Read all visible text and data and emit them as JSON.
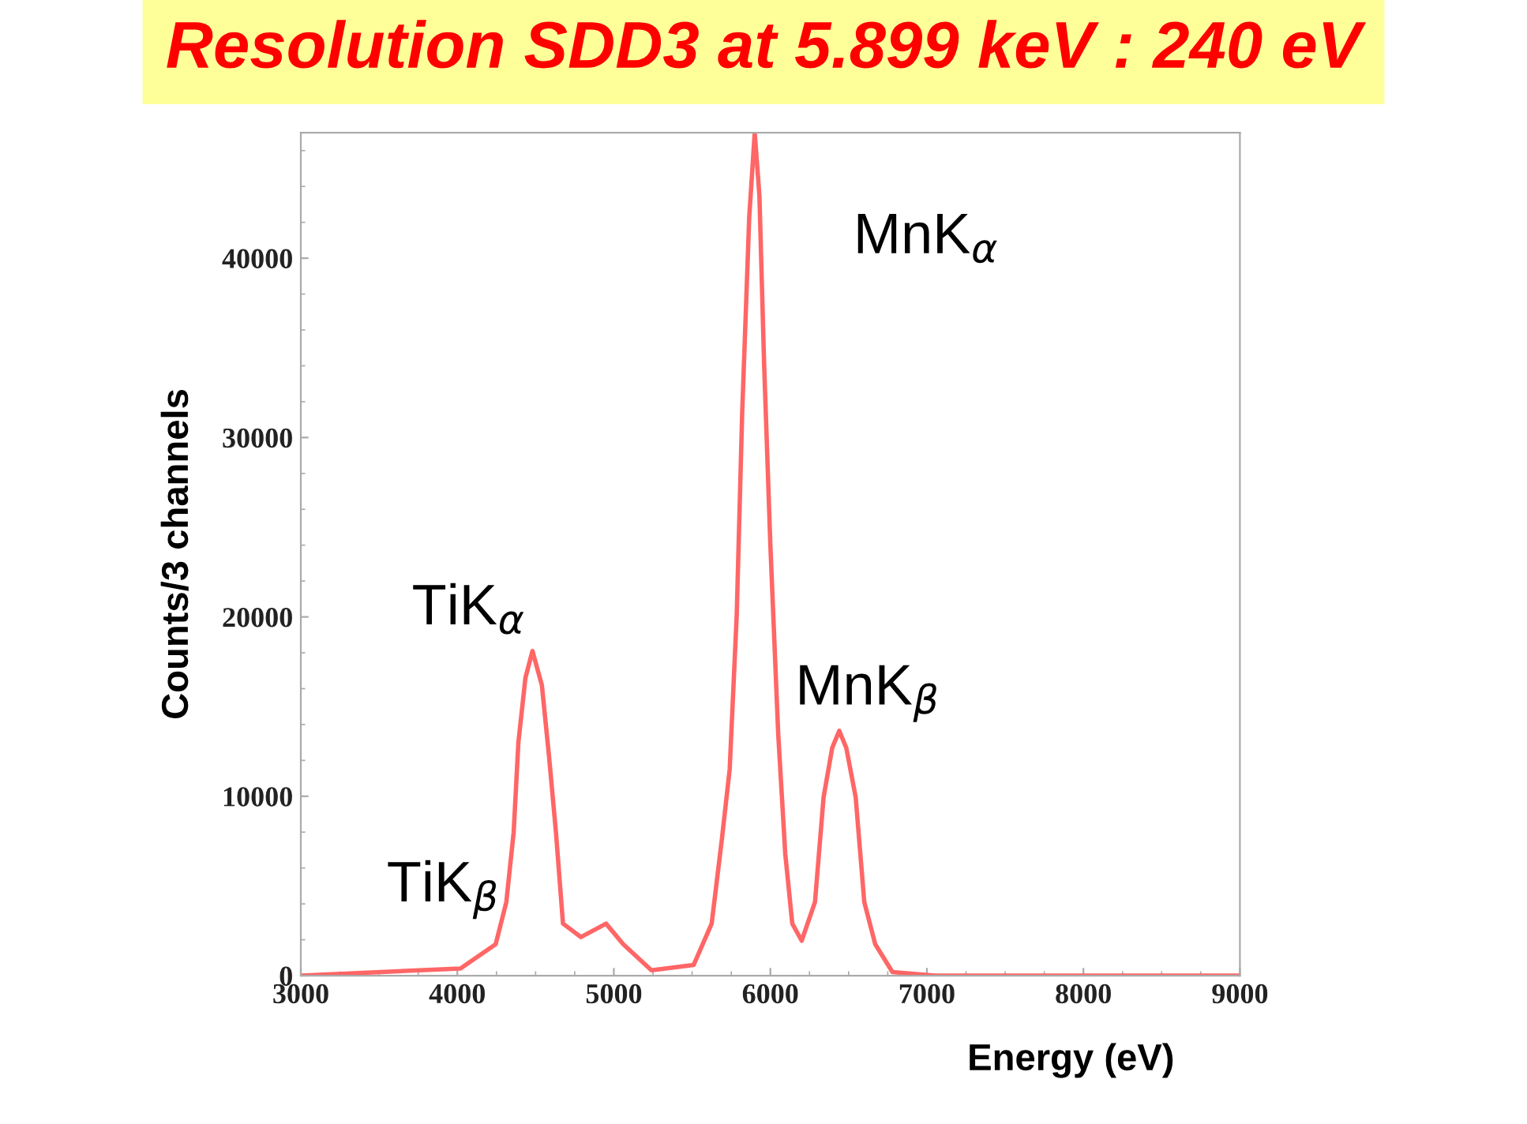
{
  "chart_data": {
    "type": "line",
    "title": "Resolution SDD3 at 5.899 keV : 240 eV",
    "xlabel": "Energy (eV)",
    "ylabel": "Counts/3 channels",
    "x": [
      3000,
      4020,
      4245,
      4313,
      4360,
      4390,
      4435,
      4480,
      4540,
      4585,
      4630,
      4675,
      4790,
      4950,
      5060,
      5240,
      5510,
      5625,
      5690,
      5740,
      5785,
      5820,
      5865,
      5900,
      5930,
      5960,
      6000,
      6050,
      6095,
      6140,
      6200,
      6285,
      6340,
      6395,
      6440,
      6485,
      6545,
      6600,
      6670,
      6780,
      7050,
      9000
    ],
    "series": [
      {
        "color": "#ff6666",
        "values": [
          0,
          400,
          1750,
          4100,
          8000,
          13000,
          16600,
          18100,
          16200,
          12300,
          8000,
          2900,
          2150,
          2900,
          1750,
          300,
          600,
          2900,
          7600,
          11500,
          20100,
          31400,
          42300,
          47000,
          43500,
          34100,
          24000,
          13500,
          6800,
          2900,
          1950,
          4100,
          9950,
          12700,
          13650,
          12700,
          9950,
          4100,
          1750,
          200,
          0,
          0
        ]
      }
    ],
    "xlim": [
      3000,
      9000
    ],
    "ylim": [
      0,
      47000
    ],
    "xticks": [
      3000,
      4000,
      5000,
      6000,
      7000,
      8000,
      9000
    ],
    "yticks": [
      0,
      10000,
      20000,
      30000,
      40000
    ],
    "annotations": [
      {
        "text": "TiK$_{α}$",
        "x": 4480,
        "y": 18100
      },
      {
        "text": "TiK$_{β}$",
        "x": 4950,
        "y": 2900
      },
      {
        "text": "MnK$_{α}$",
        "x": 5900,
        "y": 47000
      },
      {
        "text": "MnK$_{β}$",
        "x": 6440,
        "y": 13650
      }
    ],
    "grid": false,
    "legend": false,
    "marker": "none",
    "line_style": "solid"
  }
}
